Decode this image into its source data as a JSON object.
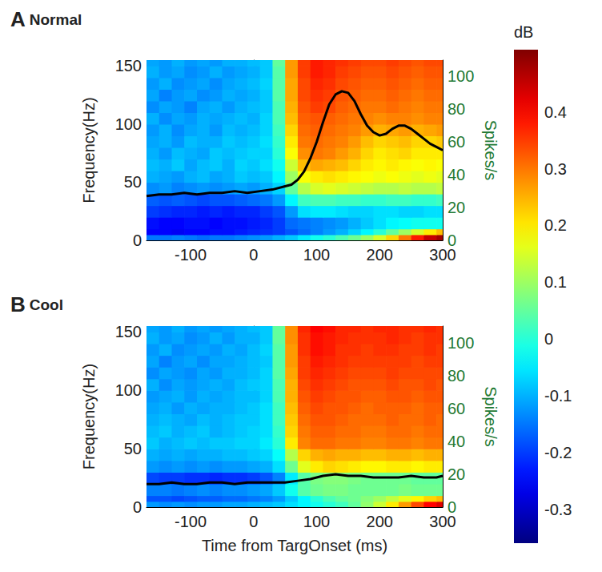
{
  "chart_data": [
    {
      "type": "heatmap",
      "label": "A",
      "title": "Normal",
      "ylabel": "Frequency(Hz)",
      "y2label": "Spikes/s",
      "xlim": [
        -170,
        300
      ],
      "xticks": [
        -100,
        0,
        100,
        200,
        300
      ],
      "ylim": [
        0,
        155
      ],
      "yticks": [
        0,
        50,
        100,
        150
      ],
      "y2lim": [
        0,
        110
      ],
      "y2ticks": [
        0,
        20,
        40,
        60,
        80,
        100
      ],
      "time_edges": [
        -170,
        -150,
        -130,
        -110,
        -90,
        -70,
        -50,
        -30,
        -10,
        10,
        30,
        50,
        70,
        90,
        110,
        130,
        150,
        170,
        190,
        210,
        230,
        250,
        270,
        290,
        300
      ],
      "freq_edges": [
        0,
        5,
        10,
        20,
        30,
        40,
        50,
        60,
        70,
        80,
        90,
        100,
        110,
        120,
        130,
        140,
        150,
        155
      ],
      "cells": [
        [
          -0.15,
          -0.15,
          -0.14,
          -0.15,
          -0.16,
          -0.15,
          -0.15,
          -0.14,
          -0.13,
          -0.12,
          -0.1,
          -0.08,
          -0.05,
          -0.02,
          0.0,
          0.03,
          0.06,
          0.1,
          0.15,
          0.22,
          0.3,
          0.38,
          0.45,
          0.48
        ],
        [
          -0.25,
          -0.25,
          -0.26,
          -0.25,
          -0.25,
          -0.24,
          -0.24,
          -0.23,
          -0.22,
          -0.21,
          -0.2,
          -0.18,
          -0.16,
          -0.14,
          -0.12,
          -0.1,
          -0.07,
          -0.04,
          0.0,
          0.05,
          0.1,
          0.15,
          0.2,
          0.24
        ],
        [
          -0.24,
          -0.25,
          -0.25,
          -0.24,
          -0.24,
          -0.25,
          -0.24,
          -0.24,
          -0.23,
          -0.22,
          -0.2,
          -0.16,
          -0.15,
          -0.14,
          -0.13,
          -0.12,
          -0.1,
          -0.08,
          -0.06,
          -0.04,
          -0.03,
          -0.02,
          -0.02,
          -0.02
        ],
        [
          -0.2,
          -0.21,
          -0.22,
          -0.22,
          -0.23,
          -0.22,
          -0.23,
          -0.22,
          -0.22,
          -0.2,
          -0.18,
          -0.12,
          -0.06,
          -0.05,
          -0.05,
          -0.06,
          -0.07,
          -0.07,
          -0.06,
          -0.06,
          -0.07,
          -0.07,
          -0.06,
          -0.06
        ],
        [
          -0.17,
          -0.18,
          -0.17,
          -0.18,
          -0.19,
          -0.18,
          -0.18,
          -0.17,
          -0.16,
          -0.15,
          -0.12,
          -0.04,
          0.02,
          0.03,
          0.03,
          0.02,
          0.02,
          0.01,
          0.01,
          0.02,
          0.02,
          0.01,
          0.01,
          0.02
        ],
        [
          -0.13,
          -0.12,
          -0.14,
          -0.13,
          -0.12,
          -0.13,
          -0.12,
          -0.11,
          -0.12,
          -0.1,
          -0.07,
          0.05,
          0.12,
          0.15,
          0.16,
          0.15,
          0.14,
          0.13,
          0.12,
          0.12,
          0.13,
          0.12,
          0.12,
          0.13
        ],
        [
          -0.1,
          -0.11,
          -0.12,
          -0.1,
          -0.09,
          -0.11,
          -0.1,
          -0.08,
          -0.09,
          -0.08,
          -0.04,
          0.1,
          0.18,
          0.2,
          0.21,
          0.2,
          0.19,
          0.18,
          0.17,
          0.18,
          0.17,
          0.16,
          0.17,
          0.16
        ],
        [
          -0.09,
          -0.1,
          -0.08,
          -0.11,
          -0.09,
          -0.08,
          -0.1,
          -0.07,
          -0.08,
          -0.06,
          -0.02,
          0.14,
          0.24,
          0.26,
          0.25,
          0.24,
          0.22,
          0.2,
          0.19,
          0.2,
          0.19,
          0.18,
          0.19,
          0.18
        ],
        [
          -0.1,
          -0.12,
          -0.09,
          -0.1,
          -0.11,
          -0.08,
          -0.09,
          -0.08,
          -0.07,
          -0.07,
          0.0,
          0.18,
          0.28,
          0.3,
          0.29,
          0.27,
          0.25,
          0.22,
          0.2,
          0.21,
          0.22,
          0.2,
          0.2,
          0.2
        ],
        [
          -0.11,
          -0.1,
          -0.12,
          -0.09,
          -0.1,
          -0.1,
          -0.08,
          -0.09,
          -0.08,
          -0.06,
          0.01,
          0.2,
          0.3,
          0.31,
          0.3,
          0.29,
          0.27,
          0.24,
          0.22,
          0.23,
          0.24,
          0.22,
          0.22,
          0.23
        ],
        [
          -0.12,
          -0.1,
          -0.13,
          -0.11,
          -0.1,
          -0.12,
          -0.09,
          -0.1,
          -0.09,
          -0.07,
          0.02,
          0.22,
          0.31,
          0.32,
          0.31,
          0.3,
          0.29,
          0.27,
          0.25,
          0.26,
          0.27,
          0.25,
          0.26,
          0.27
        ],
        [
          -0.1,
          -0.13,
          -0.11,
          -0.12,
          -0.1,
          -0.11,
          -0.1,
          -0.09,
          -0.1,
          -0.07,
          0.03,
          0.24,
          0.32,
          0.33,
          0.32,
          0.31,
          0.3,
          0.29,
          0.28,
          0.29,
          0.29,
          0.28,
          0.29,
          0.29
        ],
        [
          -0.13,
          -0.11,
          -0.12,
          -0.14,
          -0.11,
          -0.1,
          -0.12,
          -0.1,
          -0.09,
          -0.08,
          0.03,
          0.25,
          0.33,
          0.35,
          0.34,
          0.32,
          0.31,
          0.3,
          0.3,
          0.31,
          0.3,
          0.29,
          0.3,
          0.3
        ],
        [
          -0.11,
          -0.14,
          -0.12,
          -0.11,
          -0.13,
          -0.12,
          -0.1,
          -0.11,
          -0.1,
          -0.08,
          0.04,
          0.26,
          0.34,
          0.36,
          0.35,
          0.33,
          0.32,
          0.31,
          0.31,
          0.32,
          0.31,
          0.3,
          0.31,
          0.31
        ],
        [
          -0.12,
          -0.1,
          -0.13,
          -0.12,
          -0.11,
          -0.13,
          -0.11,
          -0.1,
          -0.09,
          -0.07,
          0.04,
          0.26,
          0.34,
          0.37,
          0.36,
          0.34,
          0.33,
          0.32,
          0.32,
          0.33,
          0.32,
          0.31,
          0.32,
          0.32
        ],
        [
          -0.1,
          -0.12,
          -0.11,
          -0.13,
          -0.12,
          -0.1,
          -0.12,
          -0.11,
          -0.1,
          -0.08,
          0.04,
          0.27,
          0.35,
          0.38,
          0.37,
          0.35,
          0.34,
          0.33,
          0.33,
          0.34,
          0.33,
          0.32,
          0.33,
          0.33
        ],
        [
          -0.11,
          -0.12,
          -0.1,
          -0.12,
          -0.11,
          -0.12,
          -0.1,
          -0.1,
          -0.09,
          -0.08,
          0.05,
          0.27,
          0.35,
          0.38,
          0.37,
          0.36,
          0.35,
          0.34,
          0.34,
          0.35,
          0.34,
          0.33,
          0.34,
          0.34
        ]
      ],
      "series": [
        {
          "type": "line",
          "axis": "y2",
          "color": "#000000",
          "x": [
            -170,
            -150,
            -130,
            -110,
            -90,
            -70,
            -50,
            -30,
            -10,
            10,
            30,
            50,
            60,
            70,
            80,
            90,
            100,
            110,
            120,
            130,
            140,
            150,
            160,
            170,
            180,
            190,
            200,
            210,
            220,
            230,
            240,
            250,
            260,
            270,
            280,
            290,
            300
          ],
          "values": [
            27,
            28,
            28,
            29,
            28,
            29,
            29,
            30,
            29,
            30,
            31,
            33,
            34,
            37,
            42,
            50,
            60,
            72,
            83,
            89,
            91,
            90,
            85,
            77,
            70,
            66,
            64,
            65,
            68,
            70,
            70,
            68,
            65,
            62,
            59,
            57,
            55
          ]
        }
      ]
    },
    {
      "type": "heatmap",
      "label": "B",
      "title": "Cool",
      "xlabel": "Time from TargOnset (ms)",
      "ylabel": "Frequency(Hz)",
      "y2label": "Spikes/s",
      "xlim": [
        -170,
        300
      ],
      "xticks": [
        -100,
        0,
        100,
        200,
        300
      ],
      "ylim": [
        0,
        155
      ],
      "yticks": [
        0,
        50,
        100,
        150
      ],
      "y2lim": [
        0,
        110
      ],
      "y2ticks": [
        0,
        20,
        40,
        60,
        80,
        100
      ],
      "time_edges": [
        -170,
        -150,
        -130,
        -110,
        -90,
        -70,
        -50,
        -30,
        -10,
        10,
        30,
        50,
        70,
        90,
        110,
        130,
        150,
        170,
        190,
        210,
        230,
        250,
        270,
        290,
        300
      ],
      "freq_edges": [
        0,
        5,
        10,
        20,
        30,
        40,
        50,
        60,
        70,
        80,
        90,
        100,
        110,
        120,
        130,
        140,
        150,
        155
      ],
      "cells": [
        [
          -0.12,
          -0.13,
          -0.12,
          -0.13,
          -0.12,
          -0.12,
          -0.11,
          -0.11,
          -0.1,
          -0.09,
          -0.08,
          -0.06,
          -0.04,
          -0.02,
          0.0,
          0.02,
          0.05,
          0.09,
          0.14,
          0.2,
          0.27,
          0.34,
          0.4,
          0.43
        ],
        [
          -0.18,
          -0.18,
          -0.19,
          -0.18,
          -0.17,
          -0.17,
          -0.16,
          -0.16,
          -0.15,
          -0.14,
          -0.12,
          -0.08,
          -0.04,
          0.0,
          0.03,
          0.05,
          0.06,
          0.08,
          0.1,
          0.13,
          0.16,
          0.19,
          0.22,
          0.24
        ],
        [
          -0.14,
          -0.14,
          -0.15,
          -0.14,
          -0.13,
          -0.14,
          -0.13,
          -0.13,
          -0.12,
          -0.11,
          -0.08,
          -0.02,
          0.04,
          0.06,
          0.07,
          0.07,
          0.06,
          0.06,
          0.06,
          0.06,
          0.07,
          0.06,
          0.06,
          0.06
        ],
        [
          -0.19,
          -0.2,
          -0.2,
          -0.21,
          -0.21,
          -0.22,
          -0.21,
          -0.21,
          -0.2,
          -0.18,
          -0.14,
          -0.05,
          0.04,
          0.07,
          0.08,
          0.08,
          0.07,
          0.06,
          0.06,
          0.06,
          0.06,
          0.05,
          0.05,
          0.05
        ],
        [
          -0.12,
          -0.13,
          -0.12,
          -0.13,
          -0.12,
          -0.13,
          -0.12,
          -0.12,
          -0.11,
          -0.1,
          -0.06,
          0.06,
          0.16,
          0.2,
          0.22,
          0.21,
          0.2,
          0.19,
          0.19,
          0.2,
          0.2,
          0.19,
          0.2,
          0.2
        ],
        [
          -0.1,
          -0.11,
          -0.1,
          -0.11,
          -0.1,
          -0.1,
          -0.09,
          -0.09,
          -0.08,
          -0.07,
          -0.03,
          0.12,
          0.22,
          0.25,
          0.26,
          0.25,
          0.25,
          0.24,
          0.24,
          0.25,
          0.25,
          0.24,
          0.25,
          0.25
        ],
        [
          -0.08,
          -0.1,
          -0.09,
          -0.08,
          -0.09,
          -0.08,
          -0.08,
          -0.07,
          -0.07,
          -0.05,
          0.0,
          0.2,
          0.29,
          0.31,
          0.31,
          0.3,
          0.3,
          0.29,
          0.29,
          0.3,
          0.3,
          0.29,
          0.3,
          0.3
        ],
        [
          -0.09,
          -0.08,
          -0.1,
          -0.09,
          -0.08,
          -0.1,
          -0.09,
          -0.08,
          -0.07,
          -0.06,
          0.01,
          0.22,
          0.3,
          0.32,
          0.32,
          0.31,
          0.31,
          0.3,
          0.3,
          0.31,
          0.31,
          0.3,
          0.31,
          0.31
        ],
        [
          -0.1,
          -0.09,
          -0.1,
          -0.11,
          -0.09,
          -0.1,
          -0.09,
          -0.08,
          -0.08,
          -0.06,
          0.02,
          0.23,
          0.31,
          0.33,
          0.33,
          0.32,
          0.31,
          0.31,
          0.31,
          0.32,
          0.31,
          0.31,
          0.32,
          0.31
        ],
        [
          -0.11,
          -0.1,
          -0.12,
          -0.1,
          -0.11,
          -0.1,
          -0.1,
          -0.09,
          -0.08,
          -0.06,
          0.02,
          0.24,
          0.32,
          0.34,
          0.33,
          0.33,
          0.32,
          0.31,
          0.32,
          0.32,
          0.32,
          0.31,
          0.32,
          0.32
        ],
        [
          -0.12,
          -0.11,
          -0.1,
          -0.12,
          -0.1,
          -0.11,
          -0.1,
          -0.09,
          -0.09,
          -0.07,
          0.03,
          0.25,
          0.33,
          0.35,
          0.34,
          0.33,
          0.33,
          0.32,
          0.32,
          0.33,
          0.33,
          0.32,
          0.33,
          0.33
        ],
        [
          -0.1,
          -0.13,
          -0.11,
          -0.12,
          -0.11,
          -0.1,
          -0.11,
          -0.09,
          -0.08,
          -0.07,
          0.03,
          0.25,
          0.34,
          0.36,
          0.35,
          0.34,
          0.33,
          0.33,
          0.33,
          0.34,
          0.33,
          0.33,
          0.34,
          0.33
        ],
        [
          -0.13,
          -0.11,
          -0.12,
          -0.13,
          -0.11,
          -0.12,
          -0.1,
          -0.1,
          -0.09,
          -0.07,
          0.04,
          0.26,
          0.35,
          0.37,
          0.36,
          0.35,
          0.34,
          0.34,
          0.34,
          0.35,
          0.34,
          0.34,
          0.34,
          0.34
        ],
        [
          -0.11,
          -0.14,
          -0.12,
          -0.11,
          -0.13,
          -0.11,
          -0.11,
          -0.1,
          -0.09,
          -0.08,
          0.04,
          0.27,
          0.35,
          0.38,
          0.37,
          0.36,
          0.35,
          0.35,
          0.35,
          0.35,
          0.35,
          0.34,
          0.35,
          0.35
        ],
        [
          -0.12,
          -0.1,
          -0.13,
          -0.12,
          -0.11,
          -0.12,
          -0.1,
          -0.11,
          -0.09,
          -0.07,
          0.04,
          0.27,
          0.36,
          0.39,
          0.38,
          0.36,
          0.36,
          0.35,
          0.36,
          0.36,
          0.35,
          0.35,
          0.36,
          0.35
        ],
        [
          -0.1,
          -0.12,
          -0.11,
          -0.13,
          -0.12,
          -0.1,
          -0.12,
          -0.1,
          -0.1,
          -0.08,
          0.05,
          0.28,
          0.36,
          0.39,
          0.38,
          0.37,
          0.36,
          0.36,
          0.36,
          0.37,
          0.36,
          0.35,
          0.36,
          0.36
        ],
        [
          -0.11,
          -0.12,
          -0.1,
          -0.12,
          -0.11,
          -0.12,
          -0.11,
          -0.1,
          -0.09,
          -0.08,
          0.05,
          0.28,
          0.37,
          0.4,
          0.39,
          0.37,
          0.37,
          0.36,
          0.37,
          0.37,
          0.36,
          0.36,
          0.37,
          0.36
        ]
      ],
      "series": [
        {
          "type": "line",
          "axis": "y2",
          "color": "#000000",
          "x": [
            -170,
            -150,
            -130,
            -110,
            -90,
            -70,
            -50,
            -30,
            -10,
            10,
            30,
            50,
            70,
            90,
            110,
            130,
            150,
            170,
            190,
            210,
            230,
            250,
            270,
            290,
            300
          ],
          "values": [
            14,
            14,
            15,
            14,
            14,
            15,
            15,
            14,
            15,
            15,
            15,
            15,
            16,
            17,
            19,
            20,
            19,
            19,
            18,
            18,
            18,
            19,
            18,
            18,
            19
          ]
        }
      ]
    }
  ],
  "colorbar": {
    "label": "dB",
    "range": [
      -0.36,
      0.51
    ],
    "ticks": [
      -0.3,
      -0.2,
      -0.1,
      0,
      0.1,
      0.2,
      0.3,
      0.4
    ]
  }
}
